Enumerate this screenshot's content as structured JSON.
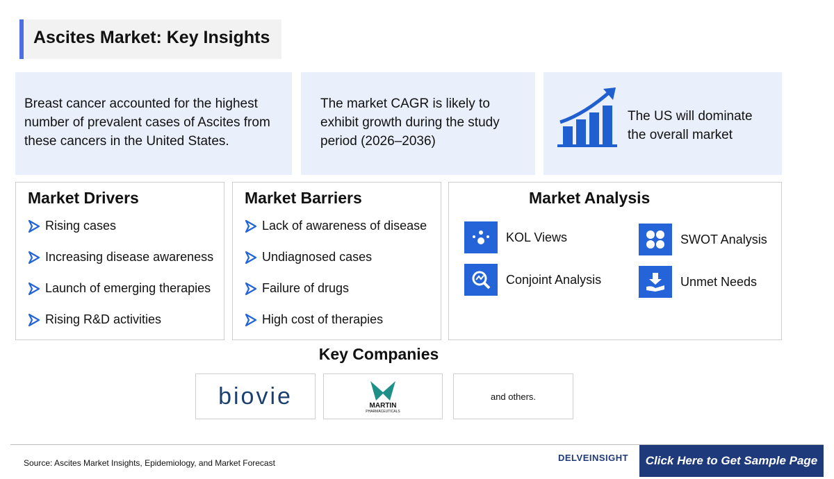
{
  "header": {
    "title": "Ascites Market: Key Insights"
  },
  "insights": [
    "Breast cancer accounted for the highest number of prevalent cases of Ascites from these cancers in the United States.",
    "The market CAGR is likely to exhibit growth during the study period (2026–2036)",
    "The US will dominate the overall market"
  ],
  "drivers": {
    "heading": "Market Drivers",
    "items": [
      "Rising cases",
      "Increasing disease awareness",
      "Launch of emerging therapies",
      "Rising R&D activities"
    ]
  },
  "barriers": {
    "heading": "Market Barriers",
    "items": [
      "Lack of awareness of disease",
      "Undiagnosed cases",
      "Failure of drugs",
      "High cost of therapies"
    ]
  },
  "analysis": {
    "heading": "Market Analysis",
    "items": [
      "KOL Views",
      "Conjoint Analysis",
      "SWOT Analysis",
      "Unmet Needs"
    ]
  },
  "companies": {
    "heading": "Key Companies",
    "logos": [
      "biovie",
      "MARTIN",
      "PHARMACEUTICALS"
    ],
    "others": "and others."
  },
  "footer": {
    "source": "Source: Ascites Market Insights, Epidemiology, and Market Forecast",
    "brand": "DELVEINSIGHT",
    "button": "Click Here to Get Sample Page"
  }
}
